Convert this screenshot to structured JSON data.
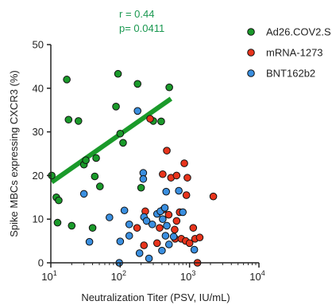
{
  "chart_data": {
    "type": "scatter",
    "xlabel": "Neutralization Titer (PSV, IU/mL)",
    "ylabel": "Spike MBCs expressing CXCR3 (%)",
    "xscale": "log",
    "xlim": [
      10,
      10000
    ],
    "ylim": [
      0,
      50
    ],
    "xticks": [
      {
        "value": 10,
        "base": "10",
        "exp": "1"
      },
      {
        "value": 100,
        "base": "10",
        "exp": "2"
      },
      {
        "value": 1000,
        "base": "10",
        "exp": "3"
      },
      {
        "value": 10000,
        "base": "10",
        "exp": "4"
      }
    ],
    "yticks": [
      0,
      10,
      20,
      30,
      40,
      50
    ],
    "annotations": [
      "r = 0.44",
      "p= 0.0411"
    ],
    "legend_position": "top-right",
    "grid": false,
    "series": [
      {
        "name": "Ad26.COV2.S",
        "color": "#1a9a2a",
        "points": [
          [
            10.3,
            20
          ],
          [
            12,
            15
          ],
          [
            12.5,
            9.2
          ],
          [
            13,
            14.3
          ],
          [
            17,
            42
          ],
          [
            18,
            32.8
          ],
          [
            20,
            8.5
          ],
          [
            25,
            32.5
          ],
          [
            30,
            22.5
          ],
          [
            32,
            23.5
          ],
          [
            40,
            8.0
          ],
          [
            43,
            19.8
          ],
          [
            45,
            24.0
          ],
          [
            51,
            17.5
          ],
          [
            87,
            35.8
          ],
          [
            93,
            43.3
          ],
          [
            100,
            29.6
          ],
          [
            110,
            27.5
          ],
          [
            178,
            41.0
          ],
          [
            200,
            17.2
          ],
          [
            300,
            32.5
          ],
          [
            390,
            32.4
          ],
          [
            510,
            40.2
          ]
        ],
        "fit_line": {
          "x": [
            10.3,
            540
          ],
          "y": [
            18.5,
            37.6
          ]
        }
      },
      {
        "name": "mRNA-1273",
        "color": "#e8341c",
        "points": [
          [
            175,
            8.0
          ],
          [
            220,
            4.0
          ],
          [
            230,
            11.8
          ],
          [
            270,
            33.0
          ],
          [
            340,
            4.5
          ],
          [
            370,
            8.0
          ],
          [
            410,
            20.3
          ],
          [
            420,
            12.2
          ],
          [
            470,
            25.7
          ],
          [
            500,
            11.0
          ],
          [
            540,
            19.5
          ],
          [
            610,
            7.6
          ],
          [
            620,
            5.5
          ],
          [
            650,
            9.6
          ],
          [
            650,
            20.0
          ],
          [
            720,
            11.6
          ],
          [
            760,
            5.5
          ],
          [
            840,
            22.8
          ],
          [
            880,
            5.0
          ],
          [
            900,
            15.5
          ],
          [
            930,
            19.5
          ],
          [
            1000,
            4.5
          ],
          [
            1130,
            8.0
          ],
          [
            1200,
            5.5
          ],
          [
            1400,
            5.8
          ],
          [
            1300,
            0
          ],
          [
            2200,
            15.2
          ]
        ]
      },
      {
        "name": "BNT162b2",
        "color": "#3a8fe0",
        "points": [
          [
            30,
            15.8
          ],
          [
            36,
            4.8
          ],
          [
            70,
            10.4
          ],
          [
            97,
            0
          ],
          [
            100,
            4.9
          ],
          [
            115,
            12.0
          ],
          [
            135,
            6.2
          ],
          [
            135,
            8.8
          ],
          [
            178,
            34.8
          ],
          [
            190,
            2.2
          ],
          [
            215,
            20.6
          ],
          [
            215,
            19.2
          ],
          [
            220,
            10.5
          ],
          [
            240,
            9.6
          ],
          [
            260,
            1.0
          ],
          [
            290,
            8.8
          ],
          [
            340,
            11.2
          ],
          [
            380,
            11.8
          ],
          [
            400,
            2.8
          ],
          [
            410,
            10.0
          ],
          [
            440,
            12.6
          ],
          [
            450,
            6.2
          ],
          [
            460,
            16.3
          ],
          [
            470,
            8.5
          ],
          [
            505,
            4.2
          ],
          [
            590,
            6.0
          ],
          [
            700,
            16.5
          ],
          [
            800,
            11.6
          ],
          [
            1170,
            3.0
          ]
        ]
      }
    ]
  }
}
